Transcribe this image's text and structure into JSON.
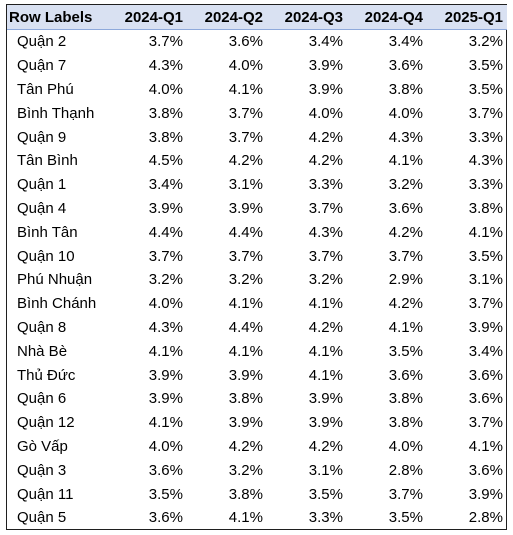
{
  "header": {
    "row_labels": "Row Labels",
    "columns": [
      "2024-Q1",
      "2024-Q2",
      "2024-Q3",
      "2024-Q4",
      "2025-Q1"
    ]
  },
  "rows": [
    {
      "label": "Quận 2",
      "values": [
        "3.7%",
        "3.6%",
        "3.4%",
        "3.4%",
        "3.2%"
      ]
    },
    {
      "label": "Quận 7",
      "values": [
        "4.3%",
        "4.0%",
        "3.9%",
        "3.6%",
        "3.5%"
      ]
    },
    {
      "label": "Tân Phú",
      "values": [
        "4.0%",
        "4.1%",
        "3.9%",
        "3.8%",
        "3.5%"
      ]
    },
    {
      "label": "Bình Thạnh",
      "values": [
        "3.8%",
        "3.7%",
        "4.0%",
        "4.0%",
        "3.7%"
      ]
    },
    {
      "label": "Quận 9",
      "values": [
        "3.8%",
        "3.7%",
        "4.2%",
        "4.3%",
        "3.3%"
      ]
    },
    {
      "label": "Tân Bình",
      "values": [
        "4.5%",
        "4.2%",
        "4.2%",
        "4.1%",
        "4.3%"
      ]
    },
    {
      "label": "Quận 1",
      "values": [
        "3.4%",
        "3.1%",
        "3.3%",
        "3.2%",
        "3.3%"
      ]
    },
    {
      "label": "Quận 4",
      "values": [
        "3.9%",
        "3.9%",
        "3.7%",
        "3.6%",
        "3.8%"
      ]
    },
    {
      "label": "Bình Tân",
      "values": [
        "4.4%",
        "4.4%",
        "4.3%",
        "4.2%",
        "4.1%"
      ]
    },
    {
      "label": "Quận 10",
      "values": [
        "3.7%",
        "3.7%",
        "3.7%",
        "3.7%",
        "3.5%"
      ]
    },
    {
      "label": "Phú Nhuận",
      "values": [
        "3.2%",
        "3.2%",
        "3.2%",
        "2.9%",
        "3.1%"
      ]
    },
    {
      "label": "Bình Chánh",
      "values": [
        "4.0%",
        "4.1%",
        "4.1%",
        "4.2%",
        "3.7%"
      ]
    },
    {
      "label": "Quận 8",
      "values": [
        "4.3%",
        "4.4%",
        "4.2%",
        "4.1%",
        "3.9%"
      ]
    },
    {
      "label": "Nhà Bè",
      "values": [
        "4.1%",
        "4.1%",
        "4.1%",
        "3.5%",
        "3.4%"
      ]
    },
    {
      "label": "Thủ Đức",
      "values": [
        "3.9%",
        "3.9%",
        "4.1%",
        "3.6%",
        "3.6%"
      ]
    },
    {
      "label": "Quận 6",
      "values": [
        "3.9%",
        "3.8%",
        "3.9%",
        "3.8%",
        "3.6%"
      ]
    },
    {
      "label": "Quận 12",
      "values": [
        "4.1%",
        "3.9%",
        "3.9%",
        "3.8%",
        "3.7%"
      ]
    },
    {
      "label": "Gò Vấp",
      "values": [
        "4.0%",
        "4.2%",
        "4.2%",
        "4.0%",
        "4.1%"
      ]
    },
    {
      "label": "Quận 3",
      "values": [
        "3.6%",
        "3.2%",
        "3.1%",
        "2.8%",
        "3.6%"
      ]
    },
    {
      "label": "Quận 11",
      "values": [
        "3.5%",
        "3.8%",
        "3.5%",
        "3.7%",
        "3.9%"
      ]
    },
    {
      "label": "Quận 5",
      "values": [
        "3.6%",
        "4.1%",
        "3.3%",
        "3.5%",
        "2.8%"
      ]
    }
  ],
  "colors": {
    "header_fill": "#d9e1f2",
    "header_rule": "#8ea9db",
    "border": "#1f1f1f",
    "text": "#000000"
  }
}
